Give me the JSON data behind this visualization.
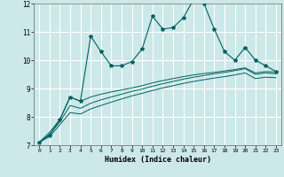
{
  "xlabel": "Humidex (Indice chaleur)",
  "background_color": "#cce8e8",
  "grid_color": "#ffffff",
  "line_color": "#006060",
  "x_data": [
    0,
    1,
    2,
    3,
    4,
    5,
    6,
    7,
    8,
    9,
    10,
    11,
    12,
    13,
    14,
    15,
    16,
    17,
    18,
    19,
    20,
    21,
    22,
    23
  ],
  "y_main": [
    7.1,
    7.35,
    7.9,
    8.7,
    8.55,
    10.85,
    10.3,
    9.8,
    9.8,
    9.95,
    10.4,
    11.55,
    11.1,
    11.15,
    11.5,
    12.15,
    12.0,
    11.1,
    10.3,
    10.0,
    10.45,
    10.0,
    9.8,
    9.6
  ],
  "y_smooth1": [
    7.1,
    7.45,
    7.9,
    8.7,
    8.55,
    8.7,
    8.8,
    8.88,
    8.95,
    9.02,
    9.1,
    9.2,
    9.28,
    9.35,
    9.42,
    9.48,
    9.53,
    9.57,
    9.62,
    9.67,
    9.73,
    9.55,
    9.6,
    9.58
  ],
  "y_smooth2": [
    7.1,
    7.38,
    7.82,
    8.4,
    8.3,
    8.48,
    8.6,
    8.7,
    8.8,
    8.9,
    8.98,
    9.08,
    9.17,
    9.25,
    9.33,
    9.4,
    9.46,
    9.52,
    9.57,
    9.63,
    9.7,
    9.5,
    9.55,
    9.52
  ],
  "y_smooth3": [
    7.1,
    7.3,
    7.72,
    8.15,
    8.1,
    8.28,
    8.4,
    8.52,
    8.63,
    8.74,
    8.83,
    8.93,
    9.02,
    9.1,
    9.18,
    9.25,
    9.31,
    9.37,
    9.42,
    9.48,
    9.55,
    9.35,
    9.4,
    9.38
  ],
  "ylim": [
    7,
    12
  ],
  "xlim": [
    -0.5,
    23.5
  ],
  "yticks": [
    7,
    8,
    9,
    10,
    11,
    12
  ],
  "xticks": [
    0,
    1,
    2,
    3,
    4,
    5,
    6,
    7,
    8,
    9,
    10,
    11,
    12,
    13,
    14,
    15,
    16,
    17,
    18,
    19,
    20,
    21,
    22,
    23
  ]
}
